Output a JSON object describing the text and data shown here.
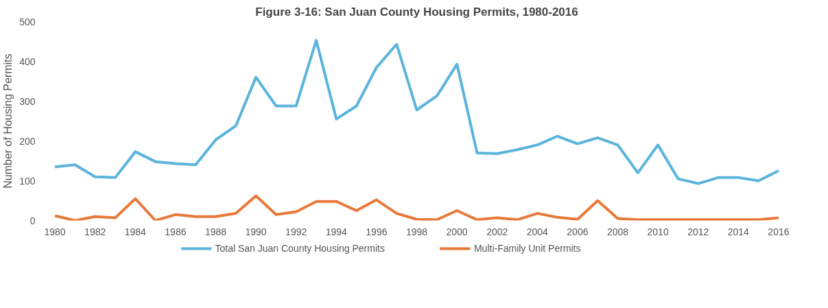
{
  "chart_data": {
    "type": "line",
    "title": "Figure 3-16: San Juan County Housing Permits, 1980-2016",
    "ylabel": "Number of Housing Permits",
    "categories": [
      "1980",
      null,
      "1982",
      null,
      "1984",
      null,
      "1986",
      null,
      "1988",
      null,
      "1990",
      null,
      "1992",
      null,
      "1994",
      null,
      "1996",
      null,
      "1998",
      null,
      "2000",
      null,
      "2002",
      null,
      "2004",
      null,
      "2006",
      null,
      "2008",
      null,
      "2010",
      null,
      "2012",
      null,
      "2014",
      null,
      "2016"
    ],
    "series": [
      {
        "name": "Total San Juan County Housing Permits",
        "color": "#5bb4dc",
        "values": [
          135,
          140,
          110,
          108,
          173,
          148,
          143,
          140,
          203,
          238,
          360,
          288,
          288,
          453,
          255,
          288,
          385,
          443,
          278,
          313,
          393,
          170,
          168,
          178,
          190,
          212,
          193,
          208,
          190,
          120,
          190,
          105,
          93,
          108,
          108,
          100,
          125
        ]
      },
      {
        "name": "Multi-Family Unit Permits",
        "color": "#e8793a",
        "values": [
          12,
          0,
          10,
          7,
          55,
          0,
          15,
          10,
          10,
          18,
          62,
          15,
          22,
          48,
          48,
          25,
          52,
          18,
          3,
          2,
          25,
          2,
          7,
          2,
          18,
          8,
          3,
          50,
          5,
          2,
          2,
          2,
          2,
          2,
          2,
          2,
          7
        ]
      }
    ],
    "ylim": [
      0,
      500
    ],
    "yticks": [
      0,
      100,
      200,
      300,
      400,
      500
    ],
    "grid": false,
    "legend": "bottom",
    "marker": "none",
    "line_style": "solid"
  }
}
